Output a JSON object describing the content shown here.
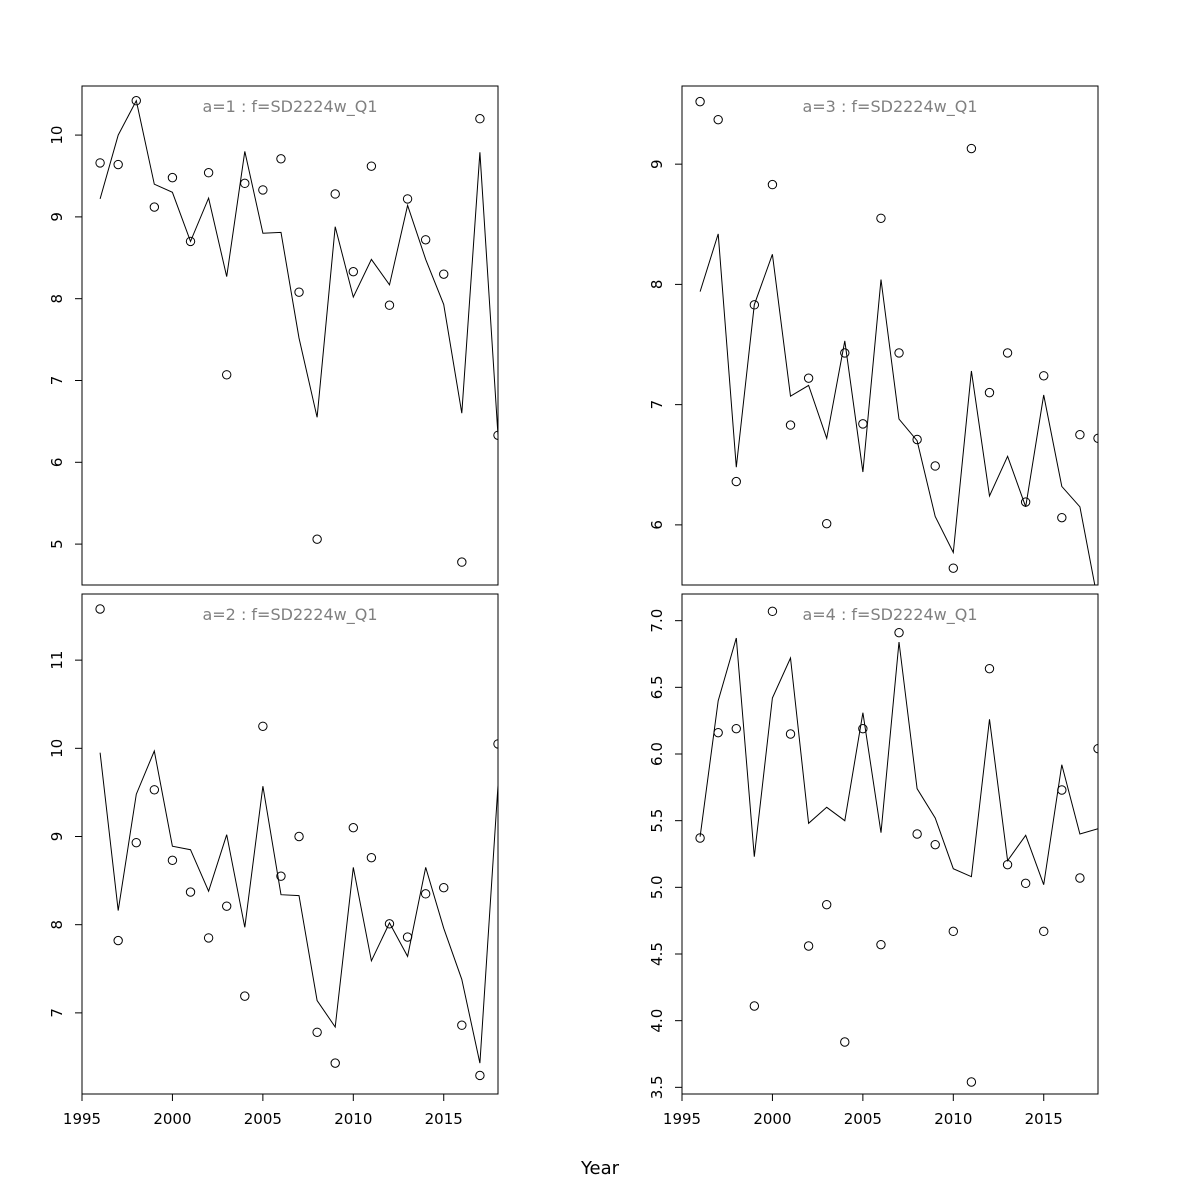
{
  "figure": {
    "xlabel": "Year"
  },
  "colors": {
    "title": "#808080",
    "line": "#000000",
    "points": "#000000"
  },
  "chart_data": [
    {
      "type": "line",
      "title": "a=1 : f=SD2224w_Q1",
      "xlim": [
        1995,
        2018
      ],
      "ylim": [
        4.5,
        10.6
      ],
      "xticks": [
        1995,
        2000,
        2005,
        2010,
        2015
      ],
      "yticks": [
        5,
        6,
        7,
        8,
        9,
        10
      ],
      "x": [
        1996,
        1997,
        1998,
        1999,
        2000,
        2001,
        2002,
        2003,
        2004,
        2005,
        2006,
        2007,
        2008,
        2009,
        2010,
        2011,
        2012,
        2013,
        2014,
        2015,
        2016,
        2017,
        2018
      ],
      "series": [
        {
          "kind": "line",
          "values": [
            9.22,
            10.0,
            10.42,
            9.4,
            9.3,
            8.7,
            9.23,
            8.27,
            9.8,
            8.8,
            8.81,
            7.52,
            6.55,
            8.88,
            8.02,
            8.48,
            8.17,
            9.14,
            8.48,
            7.93,
            6.6,
            9.79,
            6.33
          ]
        },
        {
          "kind": "points",
          "values": [
            9.66,
            9.64,
            10.42,
            9.12,
            9.48,
            8.7,
            9.54,
            7.07,
            9.41,
            9.33,
            9.71,
            8.08,
            5.06,
            9.28,
            8.33,
            9.62,
            7.92,
            9.22,
            8.72,
            8.3,
            4.78,
            10.2,
            6.33
          ]
        }
      ]
    },
    {
      "type": "line",
      "title": "a=3 : f=SD2224w_Q1",
      "xlim": [
        1995,
        2018
      ],
      "ylim": [
        5.5,
        9.65
      ],
      "xticks": [
        1995,
        2000,
        2005,
        2010,
        2015
      ],
      "yticks": [
        6,
        7,
        8,
        9
      ],
      "x": [
        1996,
        1997,
        1998,
        1999,
        2000,
        2001,
        2002,
        2003,
        2004,
        2005,
        2006,
        2007,
        2008,
        2009,
        2010,
        2011,
        2012,
        2013,
        2014,
        2015,
        2016,
        2017,
        2018
      ],
      "series": [
        {
          "kind": "line",
          "values": [
            7.94,
            8.42,
            6.48,
            7.83,
            8.25,
            7.07,
            7.16,
            6.72,
            7.53,
            6.44,
            8.04,
            6.88,
            6.7,
            6.07,
            5.77,
            7.28,
            6.24,
            6.57,
            6.15,
            7.08,
            6.32,
            6.15,
            5.36
          ]
        },
        {
          "kind": "points",
          "values": [
            9.52,
            9.37,
            6.36,
            7.83,
            8.83,
            6.83,
            7.22,
            6.01,
            7.43,
            6.84,
            8.55,
            7.43,
            6.71,
            6.49,
            5.64,
            9.13,
            7.1,
            7.43,
            6.19,
            7.24,
            6.06,
            6.75,
            6.72
          ]
        }
      ]
    },
    {
      "type": "line",
      "title": "a=2 : f=SD2224w_Q1",
      "xlim": [
        1995,
        2018
      ],
      "ylim": [
        6.08,
        11.75
      ],
      "xticks": [
        1995,
        2000,
        2005,
        2010,
        2015
      ],
      "yticks": [
        7,
        8,
        9,
        10,
        11
      ],
      "x": [
        1996,
        1997,
        1998,
        1999,
        2000,
        2001,
        2002,
        2003,
        2004,
        2005,
        2006,
        2007,
        2008,
        2009,
        2010,
        2011,
        2012,
        2013,
        2014,
        2015,
        2016,
        2017,
        2018
      ],
      "series": [
        {
          "kind": "line",
          "values": [
            9.95,
            8.16,
            9.48,
            9.97,
            8.89,
            8.85,
            8.38,
            9.02,
            7.97,
            9.57,
            8.34,
            8.33,
            7.14,
            6.84,
            8.65,
            7.59,
            8.02,
            7.64,
            8.65,
            7.96,
            7.38,
            6.43,
            9.58
          ]
        },
        {
          "kind": "points",
          "values": [
            11.58,
            7.82,
            8.93,
            9.53,
            8.73,
            8.37,
            7.85,
            8.21,
            7.19,
            10.25,
            8.55,
            9.0,
            6.78,
            6.43,
            9.1,
            8.76,
            8.01,
            7.86,
            8.35,
            8.42,
            6.86,
            6.29,
            10.05
          ]
        }
      ]
    },
    {
      "type": "line",
      "title": "a=4 : f=SD2224w_Q1",
      "xlim": [
        1995,
        2018
      ],
      "ylim": [
        3.45,
        7.2
      ],
      "xticks": [
        1995,
        2000,
        2005,
        2010,
        2015
      ],
      "yticks": [
        "3.5",
        "4.0",
        "4.5",
        "5.0",
        "5.5",
        "6.0",
        "6.5",
        "7.0"
      ],
      "x": [
        1996,
        1997,
        1998,
        1999,
        2000,
        2001,
        2002,
        2003,
        2004,
        2005,
        2006,
        2007,
        2008,
        2009,
        2010,
        2011,
        2012,
        2013,
        2014,
        2015,
        2016,
        2017,
        2018
      ],
      "series": [
        {
          "kind": "line",
          "values": [
            5.38,
            6.4,
            6.87,
            5.23,
            6.42,
            6.72,
            5.48,
            5.6,
            5.5,
            6.31,
            5.41,
            6.84,
            5.74,
            5.52,
            5.14,
            5.08,
            6.26,
            5.2,
            5.39,
            5.02,
            5.92,
            5.4,
            5.44
          ]
        },
        {
          "kind": "points",
          "values": [
            5.37,
            6.16,
            6.19,
            4.11,
            7.07,
            6.15,
            4.56,
            4.87,
            3.84,
            6.19,
            4.57,
            6.91,
            5.4,
            5.32,
            4.67,
            3.54,
            6.64,
            5.17,
            5.03,
            4.67,
            5.73,
            5.07,
            6.04
          ]
        }
      ]
    }
  ]
}
